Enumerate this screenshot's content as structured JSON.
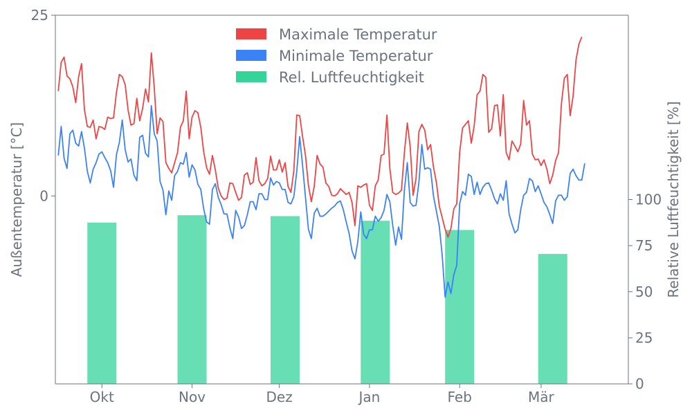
{
  "chart_data": {
    "type": "line",
    "title": "",
    "ylabel_left": "Außentemperatur [°C]",
    "ylabel_right": "Relative Luftfeuchtigkeit [%]",
    "left_axis": {
      "ylim": [
        -26,
        25
      ],
      "ticks": [
        0,
        25
      ]
    },
    "right_axis": {
      "ylim": [
        0,
        200
      ],
      "ticks": [
        0,
        25,
        50,
        75,
        100
      ]
    },
    "x_axis": {
      "range": [
        "2022-09-15",
        "2023-03-31"
      ],
      "month_ticks": [
        {
          "date": "2022-10-01",
          "label": "Okt"
        },
        {
          "date": "2022-11-01",
          "label": "Nov"
        },
        {
          "date": "2022-12-01",
          "label": "Dez"
        },
        {
          "date": "2023-01-01",
          "label": "Jan"
        },
        {
          "date": "2023-02-01",
          "label": "Feb"
        },
        {
          "date": "2023-03-01",
          "label": "Mär"
        }
      ]
    },
    "legend": {
      "placement": "top-center",
      "entries": [
        "Maximale Temperatur",
        "Minimale Temperatur",
        "Rel. Luftfeuchtigkeit"
      ]
    },
    "colors": {
      "max": "#ef4444",
      "min": "#3b82f6",
      "humidity": "#34d399"
    },
    "grid": false,
    "series": [
      {
        "name": "Maximale Temperatur",
        "kind": "line",
        "x_start": "2022-09-16",
        "x_step_days": 1,
        "values": [
          14.5,
          18.5,
          19.2,
          16.6,
          16.2,
          15.1,
          12.9,
          16.5,
          18.3,
          11.9,
          9.6,
          9.5,
          10.5,
          7.9,
          9.6,
          9.5,
          9.2,
          10.9,
          10.7,
          10.8,
          14.3,
          16.8,
          16.5,
          15.4,
          11.9,
          9.8,
          10.0,
          13.5,
          10.4,
          12.1,
          14.8,
          13.0,
          19.8,
          15.0,
          8.6,
          10.8,
          10.3,
          4.6,
          3.8,
          3.2,
          4.6,
          6.0,
          9.5,
          10.4,
          14.5,
          7.9,
          10.9,
          11.8,
          11.5,
          9.5,
          6.1,
          3.9,
          3.0,
          5.6,
          3.6,
          1.1,
          0.0,
          -0.5,
          -0.3,
          1.8,
          1.7,
          0.5,
          -0.6,
          -0.2,
          2.9,
          3.2,
          1.6,
          1.9,
          5.3,
          2.1,
          1.4,
          1.7,
          2.4,
          5.5,
          3.6,
          3.6,
          5.0,
          3.3,
          4.6,
          1.3,
          0.5,
          3.5,
          11.2,
          11.1,
          8.2,
          5.6,
          1.5,
          -0.8,
          1.3,
          5.6,
          4.4,
          4.0,
          1.8,
          1.3,
          0.1,
          0.0,
          0.3,
          1.0,
          0.6,
          0.2,
          0.5,
          -0.9,
          -4.1,
          1.4,
          1.2,
          1.5,
          1.7,
          -1.3,
          -2.0,
          1.4,
          2.2,
          5.6,
          5.8,
          11.2,
          3.8,
          0.5,
          0.2,
          0.4,
          0.8,
          6.0,
          10.1,
          6.8,
          0.1,
          2.4,
          8.9,
          9.9,
          9.1,
          6.4,
          7.1,
          4.0,
          1.9,
          -1.4,
          -3.0,
          -4.6,
          -5.7,
          -4.5,
          -1.8,
          -1.1,
          6.0,
          9.4,
          9.9,
          10.4,
          7.3,
          9.7,
          14.0,
          14.5,
          16.8,
          16.4,
          8.8,
          9.3,
          12.5,
          12.6,
          8.3,
          14.0,
          6.0,
          5.0,
          7.6,
          6.9,
          6.1,
          7.2,
          13.2,
          9.8,
          10.4,
          5.8,
          5.0,
          5.1,
          4.2,
          5.0,
          3.7,
          1.7,
          2.9,
          4.9,
          6.0,
          12.8,
          16.3,
          16.8,
          11.1,
          13.8,
          18.8,
          21.0,
          22.0
        ]
      },
      {
        "name": "Minimale Temperatur",
        "kind": "line",
        "x_start": "2022-09-16",
        "x_step_days": 1,
        "values": [
          5.6,
          9.6,
          5.2,
          3.8,
          8.6,
          9.1,
          7.3,
          6.9,
          8.9,
          6.6,
          3.4,
          1.8,
          3.7,
          4.6,
          5.8,
          6.1,
          5.3,
          4.6,
          3.5,
          1.2,
          5.7,
          7.4,
          10.5,
          6.4,
          4.7,
          5.1,
          2.9,
          2.1,
          8.1,
          8.4,
          5.9,
          5.4,
          12.5,
          8.6,
          7.6,
          2.0,
          0.8,
          -2.6,
          0.7,
          -0.6,
          2.8,
          3.4,
          4.6,
          4.4,
          6.0,
          2.6,
          4.3,
          3.6,
          1.6,
          0.9,
          -1.8,
          -3.6,
          -3.9,
          0.9,
          1.7,
          -0.2,
          -1.2,
          -2.5,
          -2.5,
          -4.4,
          -5.9,
          -2.0,
          -2.9,
          -4.5,
          -4.1,
          -2.6,
          -0.8,
          -0.8,
          -1.9,
          0.3,
          0.3,
          -0.5,
          -0.5,
          2.5,
          1.5,
          2.0,
          1.8,
          0.9,
          0.9,
          -0.9,
          -1.1,
          -0.1,
          3.4,
          8.2,
          4.2,
          -0.2,
          -4.6,
          -5.9,
          -2.4,
          -1.7,
          -2.8,
          -2.8,
          -2.5,
          -2.1,
          -1.7,
          -1.4,
          -0.9,
          -0.7,
          -1.9,
          -3.6,
          -5.2,
          -7.6,
          -8.7,
          -6.3,
          -2.2,
          -5.3,
          -5.9,
          -4.7,
          -4.7,
          -2.8,
          -3.5,
          -3.0,
          -2.0,
          0.2,
          -0.8,
          -4.1,
          -6.8,
          -4.3,
          -6.0,
          0.8,
          4.6,
          -0.9,
          -1.4,
          -1.3,
          1.9,
          7.1,
          3.7,
          3.9,
          3.7,
          0.0,
          -2.1,
          -4.2,
          -8.2,
          -14.0,
          -11.9,
          -13.5,
          -10.9,
          -9.6,
          -1.1,
          0.6,
          0.1,
          3.0,
          2.7,
          0.2,
          1.9,
          0.2,
          1.2,
          1.7,
          1.8,
          0.8,
          -0.4,
          -1.1,
          0.3,
          -0.6,
          2.1,
          -2.5,
          -3.9,
          -5.1,
          -4.7,
          -1.9,
          0.1,
          0.5,
          2.4,
          2.1,
          0.6,
          1.4,
          0.3,
          -0.9,
          -1.5,
          -2.6,
          -3.8,
          -0.7,
          0.1,
          0.1,
          -0.6,
          -0.1,
          3.1,
          3.7,
          2.8,
          2.2,
          2.2,
          4.5
        ]
      },
      {
        "name": "Rel. Luftfeuchtigkeit",
        "kind": "bar",
        "axis": "right",
        "bar_width_days": 10,
        "x": [
          "2022-10-01",
          "2022-11-01",
          "2022-12-03",
          "2023-01-03",
          "2023-02-01",
          "2023-03-05"
        ],
        "values": [
          87.5,
          91.5,
          91,
          88.5,
          83.5,
          70.5
        ]
      }
    ]
  }
}
